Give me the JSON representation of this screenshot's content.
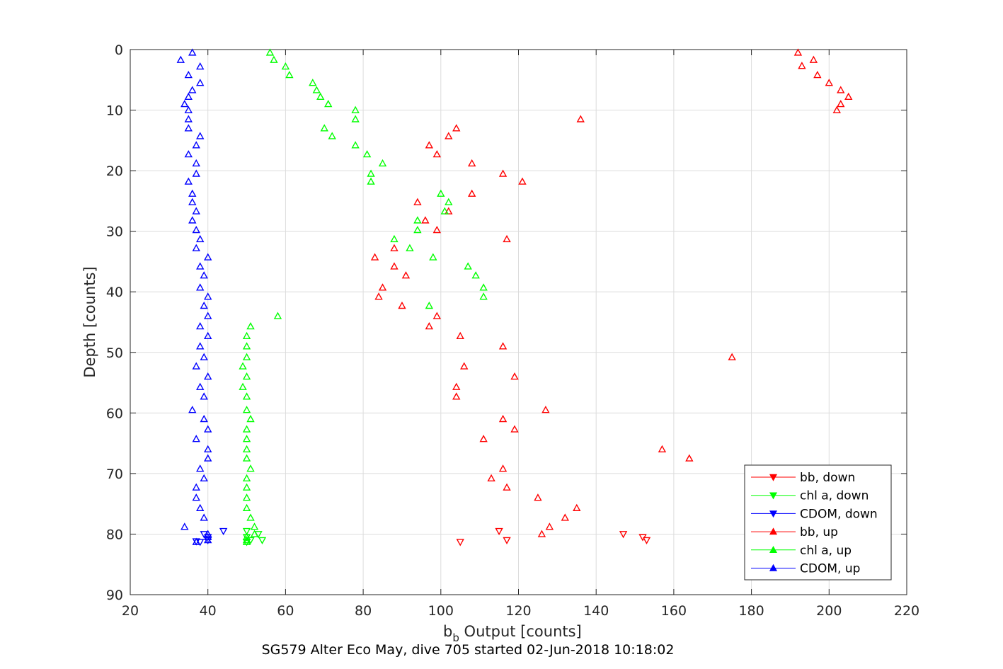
{
  "chart_data": {
    "type": "scatter",
    "title": "SG579 Alter Eco May, dive 705 started 02-Jun-2018 10:18:02",
    "xlabel_main": "b",
    "xlabel_sub": "b",
    "xlabel_rest": " Output [counts]",
    "ylabel": "Depth [counts]",
    "xlim": [
      20,
      220
    ],
    "ylim": [
      0,
      90
    ],
    "y_reversed": true,
    "xticks": [
      20,
      40,
      60,
      80,
      100,
      120,
      140,
      160,
      180,
      200,
      220
    ],
    "yticks": [
      0,
      10,
      20,
      30,
      40,
      50,
      60,
      70,
      80,
      90
    ],
    "grid": true,
    "legend_position": "bottom-right",
    "series": [
      {
        "name": "bb, down",
        "color": "#ff0000",
        "marker": "triangle-down",
        "points": [
          [
            115,
            79.5
          ],
          [
            147,
            80
          ],
          [
            152,
            80.5
          ],
          [
            153,
            81
          ],
          [
            117,
            81
          ],
          [
            105,
            81.3
          ]
        ]
      },
      {
        "name": "chl a, down",
        "color": "#00ff00",
        "marker": "triangle-down",
        "points": [
          [
            50,
            79.5
          ],
          [
            53,
            80
          ],
          [
            50,
            80.5
          ],
          [
            51,
            81
          ],
          [
            54,
            81
          ],
          [
            50,
            81.3
          ]
        ]
      },
      {
        "name": "CDOM, down",
        "color": "#0000ff",
        "marker": "triangle-down",
        "points": [
          [
            44,
            79.5
          ],
          [
            39,
            80
          ],
          [
            40,
            80.5
          ],
          [
            40,
            81
          ],
          [
            37,
            81.2
          ],
          [
            38,
            81.3
          ]
        ]
      },
      {
        "name": "bb, up",
        "color": "#ff0000",
        "marker": "triangle-up",
        "points": [
          [
            192,
            0.5
          ],
          [
            196,
            1.7
          ],
          [
            193,
            2.7
          ],
          [
            197,
            4.2
          ],
          [
            200,
            5.5
          ],
          [
            203,
            6.7
          ],
          [
            205,
            7.8
          ],
          [
            203,
            9
          ],
          [
            202,
            10
          ],
          [
            136,
            11.5
          ],
          [
            104,
            13
          ],
          [
            102,
            14.3
          ],
          [
            97,
            15.8
          ],
          [
            99,
            17.3
          ],
          [
            108,
            18.8
          ],
          [
            116,
            20.5
          ],
          [
            121,
            21.8
          ],
          [
            108,
            23.8
          ],
          [
            94,
            25.2
          ],
          [
            102,
            26.7
          ],
          [
            96,
            28.2
          ],
          [
            99,
            29.8
          ],
          [
            117,
            31.3
          ],
          [
            88,
            32.8
          ],
          [
            83,
            34.3
          ],
          [
            88,
            35.8
          ],
          [
            91,
            37.3
          ],
          [
            85,
            39.3
          ],
          [
            84,
            40.8
          ],
          [
            90,
            42.3
          ],
          [
            99,
            44
          ],
          [
            97,
            45.7
          ],
          [
            105,
            47.3
          ],
          [
            116,
            49
          ],
          [
            175,
            50.8
          ],
          [
            106,
            52.3
          ],
          [
            119,
            54
          ],
          [
            104,
            55.7
          ],
          [
            104,
            57.3
          ],
          [
            127,
            59.5
          ],
          [
            116,
            61
          ],
          [
            119,
            62.7
          ],
          [
            111,
            64.3
          ],
          [
            157,
            66
          ],
          [
            164,
            67.5
          ],
          [
            116,
            69.2
          ],
          [
            113,
            70.8
          ],
          [
            117,
            72.3
          ],
          [
            125,
            74
          ],
          [
            135,
            75.7
          ],
          [
            132,
            77.3
          ],
          [
            128,
            78.8
          ],
          [
            126,
            80
          ]
        ]
      },
      {
        "name": "chl a, up",
        "color": "#00ff00",
        "marker": "triangle-up",
        "points": [
          [
            56,
            0.5
          ],
          [
            57,
            1.7
          ],
          [
            60,
            2.8
          ],
          [
            61,
            4.2
          ],
          [
            67,
            5.5
          ],
          [
            68,
            6.7
          ],
          [
            69,
            7.8
          ],
          [
            71,
            9
          ],
          [
            78,
            10
          ],
          [
            78,
            11.5
          ],
          [
            70,
            13
          ],
          [
            72,
            14.3
          ],
          [
            78,
            15.8
          ],
          [
            81,
            17.3
          ],
          [
            85,
            18.8
          ],
          [
            82,
            20.5
          ],
          [
            82,
            21.8
          ],
          [
            100,
            23.8
          ],
          [
            102,
            25.2
          ],
          [
            101,
            26.7
          ],
          [
            94,
            28.2
          ],
          [
            94,
            29.8
          ],
          [
            88,
            31.3
          ],
          [
            92,
            32.8
          ],
          [
            98,
            34.3
          ],
          [
            107,
            35.8
          ],
          [
            109,
            37.3
          ],
          [
            111,
            39.3
          ],
          [
            111,
            40.8
          ],
          [
            97,
            42.3
          ],
          [
            58,
            44
          ],
          [
            51,
            45.7
          ],
          [
            50,
            47.3
          ],
          [
            50,
            49
          ],
          [
            50,
            50.8
          ],
          [
            49,
            52.3
          ],
          [
            50,
            54
          ],
          [
            49,
            55.7
          ],
          [
            50,
            57.3
          ],
          [
            50,
            59.5
          ],
          [
            51,
            61
          ],
          [
            50,
            62.7
          ],
          [
            50,
            64.3
          ],
          [
            50,
            66
          ],
          [
            50,
            67.5
          ],
          [
            51,
            69.2
          ],
          [
            50,
            70.8
          ],
          [
            50,
            72.3
          ],
          [
            50,
            74
          ],
          [
            50,
            75.7
          ],
          [
            51,
            77.3
          ],
          [
            52,
            78.8
          ],
          [
            52,
            80
          ],
          [
            50,
            80.5
          ],
          [
            50,
            81
          ],
          [
            50,
            81.3
          ]
        ]
      },
      {
        "name": "CDOM, up",
        "color": "#0000ff",
        "marker": "triangle-up",
        "points": [
          [
            36,
            0.5
          ],
          [
            33,
            1.7
          ],
          [
            38,
            2.8
          ],
          [
            35,
            4.2
          ],
          [
            38,
            5.5
          ],
          [
            36,
            6.7
          ],
          [
            35,
            7.8
          ],
          [
            34,
            9
          ],
          [
            35,
            10
          ],
          [
            35,
            11.5
          ],
          [
            35,
            13
          ],
          [
            38,
            14.3
          ],
          [
            37,
            15.8
          ],
          [
            35,
            17.3
          ],
          [
            37,
            18.8
          ],
          [
            37,
            20.5
          ],
          [
            35,
            21.8
          ],
          [
            36,
            23.8
          ],
          [
            36,
            25.2
          ],
          [
            37,
            26.7
          ],
          [
            36,
            28.2
          ],
          [
            37,
            29.8
          ],
          [
            38,
            31.3
          ],
          [
            37,
            32.8
          ],
          [
            40,
            34.3
          ],
          [
            38,
            35.8
          ],
          [
            39,
            37.3
          ],
          [
            38,
            39.3
          ],
          [
            40,
            40.8
          ],
          [
            39,
            42.3
          ],
          [
            40,
            44
          ],
          [
            38,
            45.7
          ],
          [
            40,
            47.3
          ],
          [
            38,
            49
          ],
          [
            39,
            50.8
          ],
          [
            37,
            52.3
          ],
          [
            40,
            54
          ],
          [
            38,
            55.7
          ],
          [
            39,
            57.3
          ],
          [
            36,
            59.5
          ],
          [
            39,
            61
          ],
          [
            40,
            62.7
          ],
          [
            37,
            64.3
          ],
          [
            40,
            66
          ],
          [
            40,
            67.5
          ],
          [
            38,
            69.2
          ],
          [
            39,
            70.8
          ],
          [
            37,
            72.3
          ],
          [
            37,
            74
          ],
          [
            38,
            75.7
          ],
          [
            39,
            77.3
          ],
          [
            34,
            78.8
          ],
          [
            40,
            80
          ],
          [
            40,
            80.5
          ],
          [
            40,
            81
          ],
          [
            37,
            81.3
          ]
        ]
      }
    ]
  }
}
